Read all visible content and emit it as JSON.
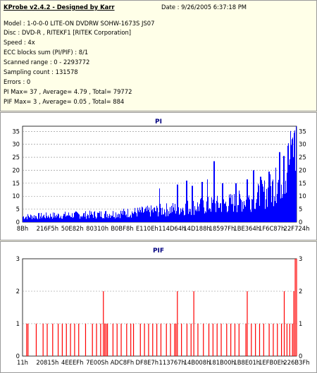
{
  "header": {
    "app_title": "KProbe v2.4.2 - Designed by Karr",
    "date": "Date : 9/26/2005 6:37:18 PM",
    "lines": [
      "Model : 1-0-0-0 LITE-ON DVDRW SOHW-1673S JS07",
      "Disc : DVD-R , RITEKF1 [RITEK Corporation]",
      "Speed : 4x",
      "ECC blocks sum (PI/PIF) : 8/1",
      "Scanned range : 0 - 2293772",
      "Sampling count : 131578",
      "Errors : 0",
      "PI Max= 37 , Average= 4.79 , Total= 79772",
      "PIF Max= 3 , Average= 0.05 , Total= 884"
    ]
  },
  "chart_data": [
    {
      "type": "area",
      "title": "PI",
      "color": "#0000ff",
      "ylim": [
        0,
        37
      ],
      "yticks": [
        0,
        5,
        10,
        15,
        20,
        25,
        30,
        35
      ],
      "xticks": [
        "8Bh",
        "216F5h",
        "50E82h",
        "80310h",
        "B0BF8h",
        "E110Eh",
        "114D64h",
        "14D188h",
        "18597Fh",
        "1BE364h",
        "1F6C87h",
        "22F724h"
      ],
      "x_range": [
        0,
        2293772
      ],
      "grid": true,
      "profile": [
        [
          0.0,
          2.0
        ],
        [
          0.04,
          2.2
        ],
        [
          0.1,
          2.4
        ],
        [
          0.16,
          2.6
        ],
        [
          0.22,
          2.7
        ],
        [
          0.28,
          2.9
        ],
        [
          0.34,
          3.2
        ],
        [
          0.4,
          3.6
        ],
        [
          0.46,
          4.0
        ],
        [
          0.5,
          4.4
        ],
        [
          0.54,
          4.8
        ],
        [
          0.58,
          5.3
        ],
        [
          0.62,
          5.7
        ],
        [
          0.66,
          6.1
        ],
        [
          0.7,
          6.4
        ],
        [
          0.74,
          6.8
        ],
        [
          0.78,
          7.5
        ],
        [
          0.82,
          8.3
        ],
        [
          0.86,
          9.5
        ],
        [
          0.9,
          11.5
        ],
        [
          0.93,
          14.5
        ],
        [
          0.96,
          19.0
        ],
        [
          0.98,
          24.0
        ],
        [
          1.0,
          27.0
        ]
      ],
      "spikes": [
        [
          0.5,
          13.0
        ],
        [
          0.565,
          14.5
        ],
        [
          0.6,
          16.0
        ],
        [
          0.62,
          14.0
        ],
        [
          0.655,
          15.5
        ],
        [
          0.675,
          16.5
        ],
        [
          0.7,
          23.5
        ],
        [
          0.73,
          15.0
        ],
        [
          0.78,
          15.0
        ],
        [
          0.82,
          16.5
        ],
        [
          0.845,
          20.0
        ],
        [
          0.87,
          17.5
        ],
        [
          0.9,
          19.5
        ],
        [
          0.925,
          21.0
        ],
        [
          0.94,
          27.0
        ],
        [
          0.955,
          25.5
        ],
        [
          0.97,
          29.5
        ],
        [
          0.985,
          32.0
        ],
        [
          0.993,
          34.5
        ],
        [
          1.0,
          37.0
        ]
      ]
    },
    {
      "type": "bar",
      "title": "PIF",
      "color": "#ff0000",
      "ylim": [
        0,
        3
      ],
      "yticks": [
        0,
        1,
        2,
        3
      ],
      "xticks": [
        "11h",
        "20815h",
        "4EEEFh",
        "7E00Sh",
        "ADC8Fh",
        "DF8E7h",
        "113767h",
        "14B008h",
        "181B00h",
        "1B8E01h",
        "1EFB0Eh",
        "226B3Fh"
      ],
      "x_range": [
        0,
        2293772
      ],
      "grid": true,
      "events": [
        [
          0.015,
          1
        ],
        [
          0.02,
          1
        ],
        [
          0.05,
          1
        ],
        [
          0.075,
          1
        ],
        [
          0.09,
          1
        ],
        [
          0.11,
          1
        ],
        [
          0.13,
          1
        ],
        [
          0.145,
          1
        ],
        [
          0.16,
          1
        ],
        [
          0.175,
          1
        ],
        [
          0.19,
          1
        ],
        [
          0.205,
          1
        ],
        [
          0.23,
          1
        ],
        [
          0.255,
          1
        ],
        [
          0.27,
          1
        ],
        [
          0.285,
          1
        ],
        [
          0.295,
          2
        ],
        [
          0.3,
          1
        ],
        [
          0.305,
          1
        ],
        [
          0.31,
          1
        ],
        [
          0.33,
          1
        ],
        [
          0.345,
          1
        ],
        [
          0.36,
          1
        ],
        [
          0.38,
          1
        ],
        [
          0.395,
          1
        ],
        [
          0.405,
          1
        ],
        [
          0.43,
          1
        ],
        [
          0.445,
          1
        ],
        [
          0.46,
          1
        ],
        [
          0.475,
          1
        ],
        [
          0.49,
          1
        ],
        [
          0.505,
          1
        ],
        [
          0.525,
          1
        ],
        [
          0.54,
          1
        ],
        [
          0.555,
          1
        ],
        [
          0.56,
          1
        ],
        [
          0.565,
          2
        ],
        [
          0.58,
          1
        ],
        [
          0.6,
          1
        ],
        [
          0.615,
          1
        ],
        [
          0.625,
          2
        ],
        [
          0.64,
          1
        ],
        [
          0.66,
          1
        ],
        [
          0.68,
          1
        ],
        [
          0.695,
          1
        ],
        [
          0.71,
          1
        ],
        [
          0.725,
          1
        ],
        [
          0.745,
          1
        ],
        [
          0.76,
          1
        ],
        [
          0.775,
          1
        ],
        [
          0.79,
          1
        ],
        [
          0.815,
          1
        ],
        [
          0.82,
          2
        ],
        [
          0.835,
          1
        ],
        [
          0.85,
          1
        ],
        [
          0.865,
          1
        ],
        [
          0.88,
          1
        ],
        [
          0.9,
          1
        ],
        [
          0.915,
          1
        ],
        [
          0.93,
          1
        ],
        [
          0.945,
          1
        ],
        [
          0.955,
          2
        ],
        [
          0.965,
          1
        ],
        [
          0.975,
          1
        ],
        [
          0.985,
          1
        ],
        [
          0.99,
          2
        ],
        [
          0.995,
          3
        ],
        [
          1.0,
          3
        ]
      ]
    }
  ]
}
